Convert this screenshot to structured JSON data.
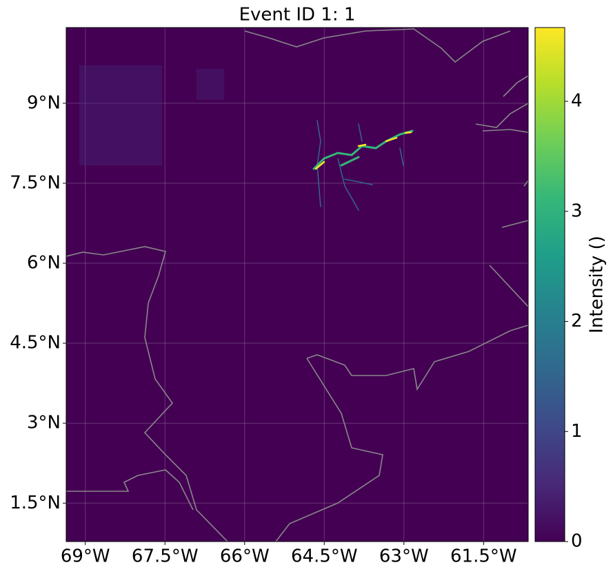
{
  "chart_data": {
    "type": "map",
    "title": "Event ID 1: 1",
    "xlim": [
      -69.36,
      -60.66
    ],
    "ylim": [
      0.78,
      10.42
    ],
    "xticks": [
      {
        "value": -69,
        "label": "69°W"
      },
      {
        "value": -67.5,
        "label": "67.5°W"
      },
      {
        "value": -66,
        "label": "66°W"
      },
      {
        "value": -64.5,
        "label": "64.5°W"
      },
      {
        "value": -63,
        "label": "63°W"
      },
      {
        "value": -61.5,
        "label": "61.5°W"
      }
    ],
    "yticks": [
      {
        "value": 1.5,
        "label": "1.5°N"
      },
      {
        "value": 3,
        "label": "3°N"
      },
      {
        "value": 4.5,
        "label": "4.5°N"
      },
      {
        "value": 6,
        "label": "6°N"
      },
      {
        "value": 7.5,
        "label": "7.5°N"
      },
      {
        "value": 9,
        "label": "9°N"
      }
    ],
    "grid": true,
    "colormap": "viridis",
    "clim": [
      0,
      4.67
    ],
    "cticks": [
      0,
      1,
      2,
      3,
      4
    ],
    "colorbar_label": "Intensity ()"
  }
}
